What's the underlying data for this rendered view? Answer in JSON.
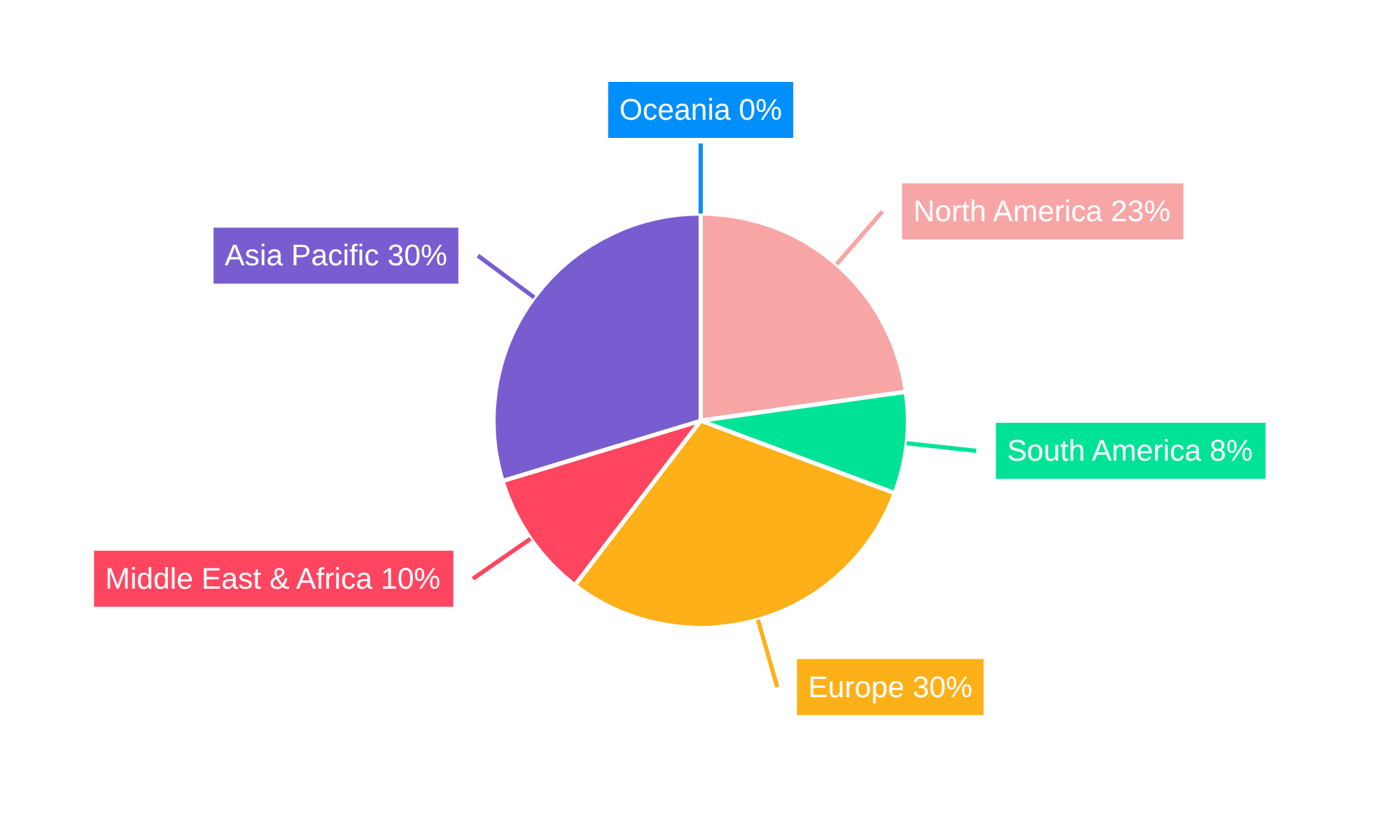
{
  "chart_data": {
    "type": "pie",
    "categories": [
      "North America",
      "South America",
      "Europe",
      "Middle East & Africa",
      "Asia Pacific",
      "Oceania"
    ],
    "values": [
      23,
      8,
      30,
      10,
      30,
      0
    ],
    "colors": [
      "#f8a5a6",
      "#00e396",
      "#feb019",
      "#ff4560",
      "#775dd0",
      "#008ffb"
    ],
    "value_labels": [
      "23%",
      "8%",
      "30%",
      "10%",
      "30%",
      "0%"
    ]
  }
}
